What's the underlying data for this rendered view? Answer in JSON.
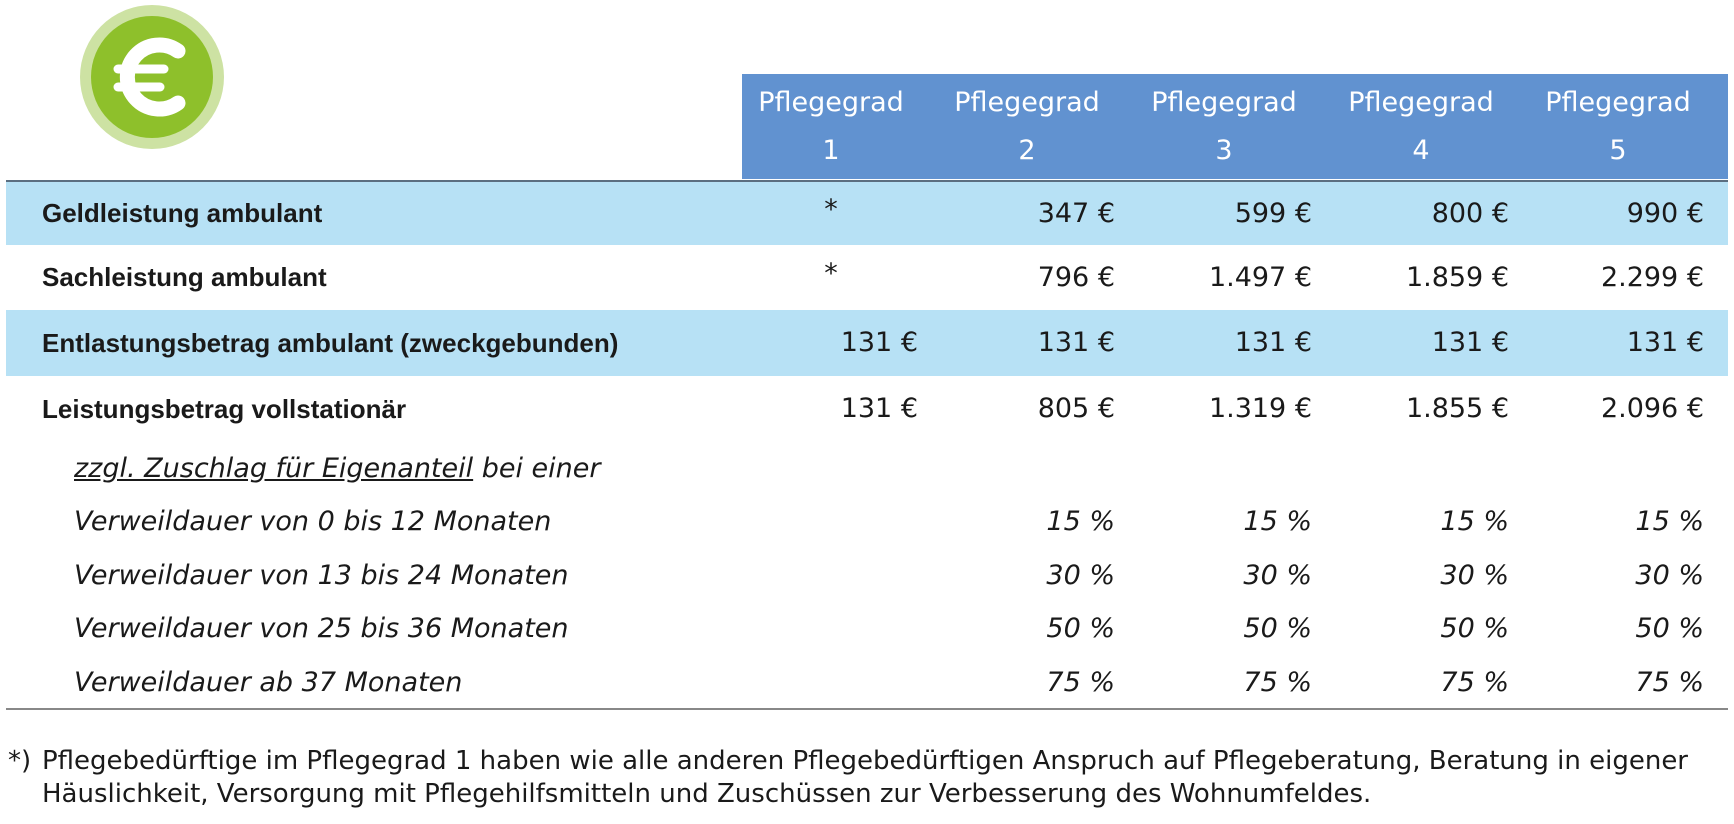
{
  "header": {
    "columns": [
      {
        "line1": "Pflegegrad",
        "line2": "1"
      },
      {
        "line1": "Pflegegrad",
        "line2": "2"
      },
      {
        "line1": "Pflegegrad",
        "line2": "3"
      },
      {
        "line1": "Pflegegrad",
        "line2": "4"
      },
      {
        "line1": "Pflegegrad",
        "line2": "5"
      }
    ]
  },
  "table": {
    "rows": [
      {
        "label": "Geldleistung ambulant",
        "cells": [
          "*",
          "347 €",
          "599 €",
          "800 €",
          "990 €"
        ]
      },
      {
        "label": "Sachleistung ambulant",
        "cells": [
          "*",
          "796 €",
          "1.497 €",
          "1.859 €",
          "2.299 €"
        ]
      },
      {
        "label": "Entlastungsbetrag ambulant (zweckgebunden)",
        "cells": [
          "131 €",
          "131 €",
          "131 €",
          "131 €",
          "131 €"
        ]
      },
      {
        "label": "Leistungsbetrag vollstationär",
        "cells": [
          "131 €",
          "805 €",
          "1.319 €",
          "1.855 €",
          "2.096 €"
        ]
      }
    ]
  },
  "surcharge": {
    "heading_underlined": "zzgl. Zuschlag für Eigenanteil",
    "heading_rest": " bei einer",
    "rows": [
      {
        "label": "Verweildauer von 0 bis 12 Monaten",
        "cells": [
          "15 %",
          "15 %",
          "15 %",
          "15 %"
        ]
      },
      {
        "label": "Verweildauer von 13 bis 24 Monaten",
        "cells": [
          "30 %",
          "30 %",
          "30 %",
          "30 %"
        ]
      },
      {
        "label": "Verweildauer von 25 bis 36 Monaten",
        "cells": [
          "50 %",
          "50 %",
          "50 %",
          "50 %"
        ]
      },
      {
        "label": "Verweildauer ab 37 Monaten",
        "cells": [
          "75 %",
          "75 %",
          "75 %",
          "75 %"
        ]
      }
    ]
  },
  "footnote": {
    "marker": "*)",
    "text": "Pflegebedürftige im Pflegegrad 1 haben wie alle anderen Pflegebedürftigen Anspruch auf Pflegeberatung, Beratung in eigener Häuslichkeit, Versorgung mit Pflegehilfsmitteln und Zuschüssen zur Verbesserung des Wohnumfeldes."
  }
}
